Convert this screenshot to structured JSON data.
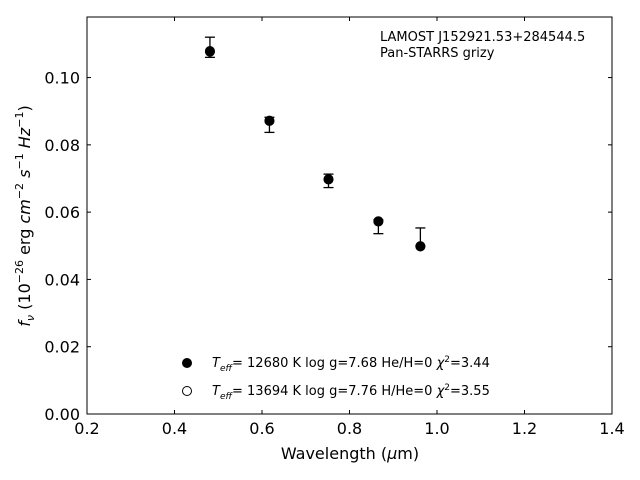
{
  "chart_data": {
    "type": "scatter",
    "xlabel": "Wavelength (μm)",
    "ylabel": "fν (10⁻²⁶ erg cm⁻² s⁻¹ Hz⁻¹)",
    "xlim": [
      0.2,
      1.4
    ],
    "ylim": [
      0.0,
      0.118
    ],
    "xticks": [
      0.2,
      0.4,
      0.6,
      0.8,
      1.0,
      1.2,
      1.4
    ],
    "xtick_labels": [
      "0.2",
      "0.4",
      "0.6",
      "0.8",
      "1.0",
      "1.2",
      "1.4"
    ],
    "yticks": [
      0.0,
      0.02,
      0.04,
      0.06,
      0.08,
      0.1
    ],
    "ytick_labels": [
      "0.00",
      "0.02",
      "0.04",
      "0.06",
      "0.08",
      "0.10"
    ],
    "grid": false,
    "annotation_lines": [
      "LAMOST J152921.53+284544.5",
      "Pan-STARRS grizy"
    ],
    "observed": {
      "x": [
        0.481,
        0.617,
        0.752,
        0.866,
        0.962
      ],
      "y": [
        0.109,
        0.0862,
        0.07,
        0.0558,
        0.0506
      ],
      "yerr_low": [
        0.106,
        0.0837,
        0.0673,
        0.0536,
        0.05
      ],
      "yerr_high": [
        0.112,
        0.0882,
        0.0713,
        0.0577,
        0.0553
      ]
    },
    "series": [
      {
        "name": "Teff= 12680 K  log g=7.68  He/H=0  χ²=3.44",
        "marker": "filled-circle",
        "x": [
          0.481,
          0.617,
          0.752,
          0.866,
          0.962
        ],
        "y": [
          0.1077,
          0.0872,
          0.0698,
          0.0573,
          0.0499
        ]
      },
      {
        "name": "Teff= 13694 K  log g=7.76  H/He=0  χ²=3.55",
        "marker": "open-circle",
        "x": [
          0.481,
          0.617,
          0.752,
          0.866,
          0.962
        ],
        "y": [
          0.1079,
          0.0871,
          0.0697,
          0.0572,
          0.0498
        ]
      }
    ],
    "legend_location": "lower-center",
    "colors": {
      "marker": "#000000",
      "axes": "#000000",
      "background": "#ffffff"
    }
  }
}
